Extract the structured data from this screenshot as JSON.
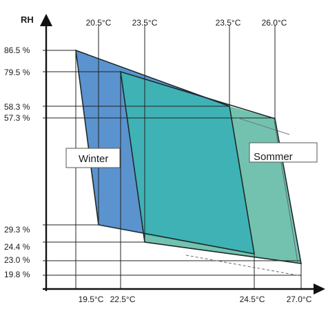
{
  "colors": {
    "winter_fill": "#5b93cf",
    "overlap_fill": "#3fb2b5",
    "sommer_fill": "#73c2b0",
    "outline": "#1c2a2a",
    "guide": "#222222",
    "axis": "#111111"
  },
  "axis": {
    "y_label": "RH",
    "x_direction": "arrow-right",
    "y_direction": "arrow-up"
  },
  "rh_ticks": [
    "86.5 %",
    "79.5 %",
    "58.3 %",
    "57.3 %",
    "29.3 %",
    "24.4 %",
    "23.0 %",
    "19.8 %"
  ],
  "temp_top": [
    "20.5°C",
    "23.5°C",
    "23.5°C",
    "26.0°C"
  ],
  "temp_bottom": [
    "19.5°C",
    "22.5°C",
    "24.5°C",
    "27.0°C"
  ],
  "zones": {
    "winter": {
      "label": "Winter",
      "points": [
        {
          "temp": 19.5,
          "rh": 86.5
        },
        {
          "temp": 23.5,
          "rh": 58.3
        },
        {
          "temp": 24.5,
          "rh": 24.4
        },
        {
          "temp": 20.5,
          "rh": 29.3
        }
      ]
    },
    "sommer": {
      "label": "Sommer",
      "points": [
        {
          "temp": 22.5,
          "rh": 79.5
        },
        {
          "temp": 26.0,
          "rh": 57.3
        },
        {
          "temp": 27.0,
          "rh": 23.0
        },
        {
          "temp": 23.5,
          "rh": 24.4
        }
      ]
    }
  }
}
